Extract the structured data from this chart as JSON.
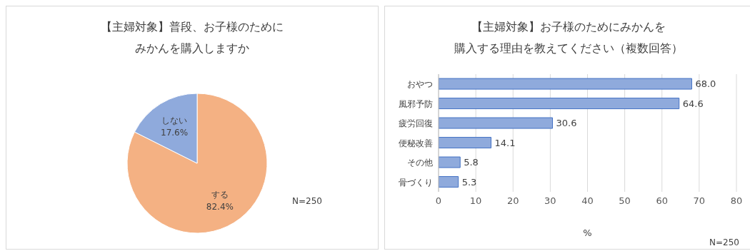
{
  "chart_data": [
    {
      "type": "pie",
      "title": "【主婦対象】普段、お子様のためにみかんを購入しますか",
      "categories": [
        "する",
        "しない"
      ],
      "values": [
        82.4,
        17.6
      ],
      "colors": [
        "#f4b183",
        "#8faadc"
      ],
      "value_labels": [
        "82.4%",
        "17.6%"
      ],
      "annotations": [
        "N=250"
      ]
    },
    {
      "type": "bar",
      "orientation": "horizontal",
      "title": "【主婦対象】お子様のためにみかんを購入する理由を教えてください（複数回答）",
      "categories": [
        "おやつ",
        "風邪予防",
        "疲労回復",
        "便秘改善",
        "その他",
        "骨づくり"
      ],
      "values": [
        68.0,
        64.6,
        30.6,
        14.1,
        5.8,
        5.3
      ],
      "color": "#8faadc",
      "value_labels": [
        "68.0",
        "64.6",
        "30.6",
        "14.1",
        "5.8",
        "5.3"
      ],
      "xlabel": "%",
      "xlim": [
        0,
        80
      ],
      "xticks": [
        0,
        10,
        20,
        30,
        40,
        50,
        60,
        70,
        80
      ],
      "grid": "x",
      "annotations": [
        "N=250"
      ]
    }
  ]
}
